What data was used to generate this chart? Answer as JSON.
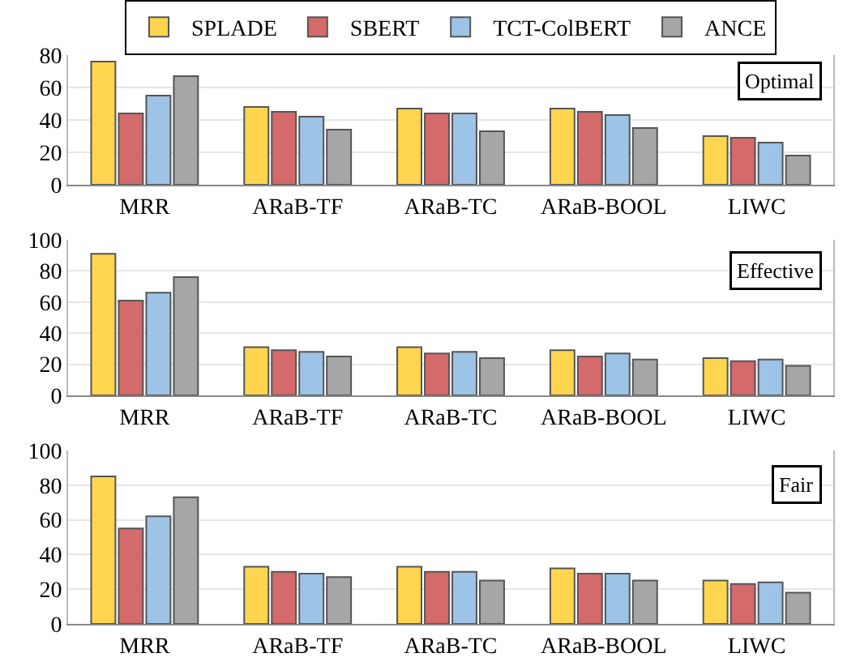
{
  "chart_data": [
    {
      "type": "bar",
      "categories": [
        "MRR",
        "ARaB-TF",
        "ARaB-TC",
        "ARaB-BOOL",
        "LIWC"
      ],
      "legend": "top",
      "grid": "y",
      "ylim": [
        0,
        80
      ],
      "yticks": [
        0,
        20,
        40,
        60,
        80
      ],
      "annotations": [
        "Optimal"
      ],
      "series": [
        {
          "name": "SPLADE",
          "color": "#ffd54f",
          "values": [
            76,
            48,
            47,
            47,
            30
          ]
        },
        {
          "name": "SBERT",
          "color": "#d46a6a",
          "values": [
            44,
            45,
            44,
            45,
            29
          ]
        },
        {
          "name": "TCT-ColBERT",
          "color": "#9dc3e6",
          "values": [
            55,
            42,
            44,
            43,
            26
          ]
        },
        {
          "name": "ANCE",
          "color": "#a6a6a6",
          "values": [
            67,
            34,
            33,
            35,
            18
          ]
        }
      ]
    },
    {
      "type": "bar",
      "categories": [
        "MRR",
        "ARaB-TF",
        "ARaB-TC",
        "ARaB-BOOL",
        "LIWC"
      ],
      "grid": "y",
      "ylim": [
        0,
        100
      ],
      "yticks": [
        0,
        20,
        40,
        60,
        80,
        100
      ],
      "annotations": [
        "Effective"
      ],
      "series": [
        {
          "color": "#ffd54f",
          "values": [
            91,
            31,
            31,
            29,
            24
          ]
        },
        {
          "color": "#d46a6a",
          "values": [
            61,
            29,
            27,
            25,
            22
          ]
        },
        {
          "color": "#9dc3e6",
          "values": [
            66,
            28,
            28,
            27,
            23
          ]
        },
        {
          "color": "#a6a6a6",
          "values": [
            76,
            25,
            24,
            23,
            19
          ]
        }
      ]
    },
    {
      "type": "bar",
      "categories": [
        "MRR",
        "ARaB-TF",
        "ARaB-TC",
        "ARaB-BOOL",
        "LIWC"
      ],
      "grid": "y",
      "ylim": [
        0,
        100
      ],
      "yticks": [
        0,
        20,
        40,
        60,
        80,
        100
      ],
      "annotations": [
        "Fair"
      ],
      "series": [
        {
          "color": "#ffd54f",
          "values": [
            85,
            33,
            33,
            32,
            25
          ]
        },
        {
          "color": "#d46a6a",
          "values": [
            55,
            30,
            30,
            29,
            23
          ]
        },
        {
          "color": "#9dc3e6",
          "values": [
            62,
            29,
            30,
            29,
            24
          ]
        },
        {
          "color": "#a6a6a6",
          "values": [
            73,
            27,
            25,
            25,
            18
          ]
        }
      ]
    }
  ]
}
